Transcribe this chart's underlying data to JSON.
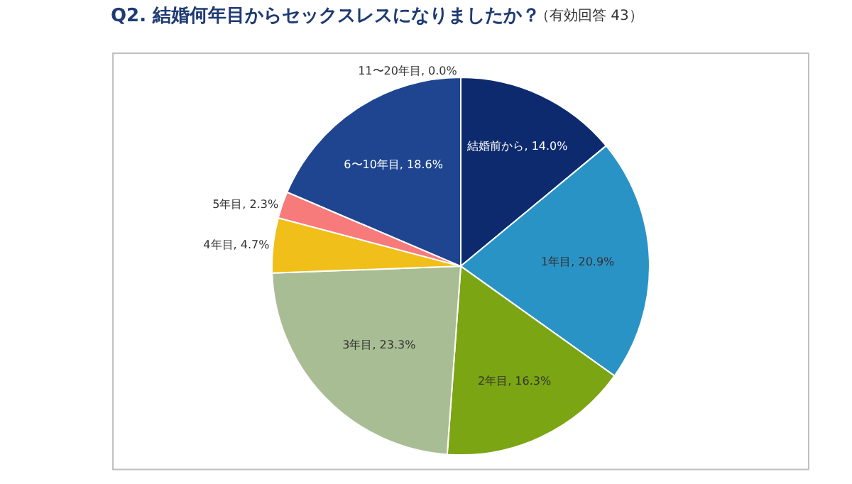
{
  "chart_data": {
    "type": "pie",
    "title": "Q2. 結婚何年目からセックスレスになりましたか？",
    "subtitle": "（有効回答 43）",
    "categories": [
      "結婚前から",
      "1年目",
      "2年目",
      "3年目",
      "4年目",
      "5年目",
      "6〜10年目",
      "11〜20年目"
    ],
    "values": [
      14.0,
      20.9,
      16.3,
      23.3,
      4.7,
      2.3,
      18.6,
      0.0
    ],
    "value_labels": [
      ", 14.0%",
      ", 20.9%",
      ", 16.3%",
      ", 23.3%",
      ", 4.7%",
      ", 2.3%",
      ", 18.6%",
      ", 0.0%"
    ],
    "colors": [
      "#0d2a6e",
      "#2a93c6",
      "#7ba512",
      "#a9bd94",
      "#f0bf1a",
      "#f77b7b",
      "#1f4590",
      "#7f7f7f"
    ],
    "legend": false
  }
}
